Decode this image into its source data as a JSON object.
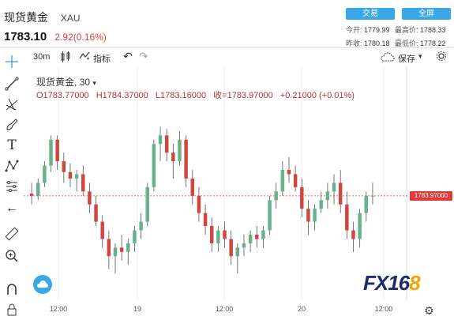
{
  "header": {
    "name": "现货黄金",
    "code": "XAU",
    "price": "1783.10",
    "change": "2.92(0.16%)",
    "trade_btn": "交易",
    "fullscreen_btn": "全屏",
    "stats": {
      "open_label": "今开:",
      "open": "1779.99",
      "high_label": "最高价:",
      "high": "1788.33",
      "prev_label": "昨收:",
      "prev": "1780.18",
      "low_label": "最低价:",
      "low": "1778.22"
    }
  },
  "toolbar": {
    "interval": "30m",
    "indicators": "指标",
    "save": "保存"
  },
  "overlay": {
    "title": "现货黄金",
    "interval": "30",
    "open": "O1783.77000",
    "high": "H1784.37000",
    "low": "L1783.16000",
    "close": "收=1783.97000",
    "change": "+0.21000 (+0.01%)"
  },
  "price_tag": "1783.97000",
  "x_axis": {
    "labels": [
      "12:00",
      "19",
      "12:00",
      "20",
      "12:00"
    ]
  },
  "logo": {
    "text1": "FX16",
    "text2": "8"
  },
  "colors": {
    "up": "#66b38a",
    "down": "#d0463f",
    "accent": "#3aa7e6"
  },
  "chart_data": {
    "type": "candlestick",
    "ohlc": [
      [
        1785,
        1790,
        1780,
        1784
      ],
      [
        1784,
        1792,
        1782,
        1790
      ],
      [
        1790,
        1800,
        1788,
        1798
      ],
      [
        1798,
        1812,
        1795,
        1810
      ],
      [
        1810,
        1812,
        1796,
        1800
      ],
      [
        1800,
        1804,
        1790,
        1795
      ],
      [
        1795,
        1799,
        1788,
        1792
      ],
      [
        1792,
        1796,
        1786,
        1794
      ],
      [
        1794,
        1798,
        1784,
        1786
      ],
      [
        1786,
        1790,
        1776,
        1780
      ],
      [
        1780,
        1784,
        1770,
        1772
      ],
      [
        1772,
        1775,
        1760,
        1764
      ],
      [
        1764,
        1768,
        1750,
        1756
      ],
      [
        1756,
        1762,
        1748,
        1760
      ],
      [
        1760,
        1766,
        1754,
        1758
      ],
      [
        1758,
        1764,
        1752,
        1762
      ],
      [
        1762,
        1770,
        1758,
        1768
      ],
      [
        1768,
        1776,
        1764,
        1772
      ],
      [
        1772,
        1790,
        1770,
        1788
      ],
      [
        1788,
        1810,
        1786,
        1808
      ],
      [
        1808,
        1816,
        1800,
        1812
      ],
      [
        1812,
        1815,
        1800,
        1804
      ],
      [
        1804,
        1808,
        1792,
        1800
      ],
      [
        1800,
        1814,
        1798,
        1810
      ],
      [
        1810,
        1812,
        1788,
        1792
      ],
      [
        1792,
        1796,
        1780,
        1784
      ],
      [
        1784,
        1788,
        1772,
        1776
      ],
      [
        1776,
        1780,
        1766,
        1770
      ],
      [
        1770,
        1774,
        1758,
        1762
      ],
      [
        1762,
        1770,
        1758,
        1768
      ],
      [
        1768,
        1772,
        1760,
        1764
      ],
      [
        1764,
        1768,
        1752,
        1756
      ],
      [
        1756,
        1762,
        1748,
        1760
      ],
      [
        1760,
        1766,
        1756,
        1762
      ],
      [
        1762,
        1768,
        1758,
        1766
      ],
      [
        1766,
        1770,
        1760,
        1764
      ],
      [
        1764,
        1770,
        1760,
        1768
      ],
      [
        1768,
        1784,
        1766,
        1782
      ],
      [
        1782,
        1790,
        1778,
        1786
      ],
      [
        1786,
        1800,
        1784,
        1796
      ],
      [
        1796,
        1802,
        1790,
        1794
      ],
      [
        1794,
        1798,
        1786,
        1788
      ],
      [
        1788,
        1792,
        1774,
        1778
      ],
      [
        1778,
        1782,
        1766,
        1772
      ],
      [
        1772,
        1780,
        1768,
        1778
      ],
      [
        1778,
        1786,
        1776,
        1782
      ],
      [
        1782,
        1790,
        1778,
        1786
      ],
      [
        1786,
        1794,
        1780,
        1790
      ],
      [
        1790,
        1796,
        1776,
        1780
      ],
      [
        1780,
        1786,
        1764,
        1768
      ],
      [
        1768,
        1772,
        1758,
        1764
      ],
      [
        1764,
        1778,
        1760,
        1776
      ],
      [
        1776,
        1786,
        1772,
        1784
      ],
      [
        1784,
        1790,
        1780,
        1784
      ]
    ],
    "price_line": 1783.97
  }
}
